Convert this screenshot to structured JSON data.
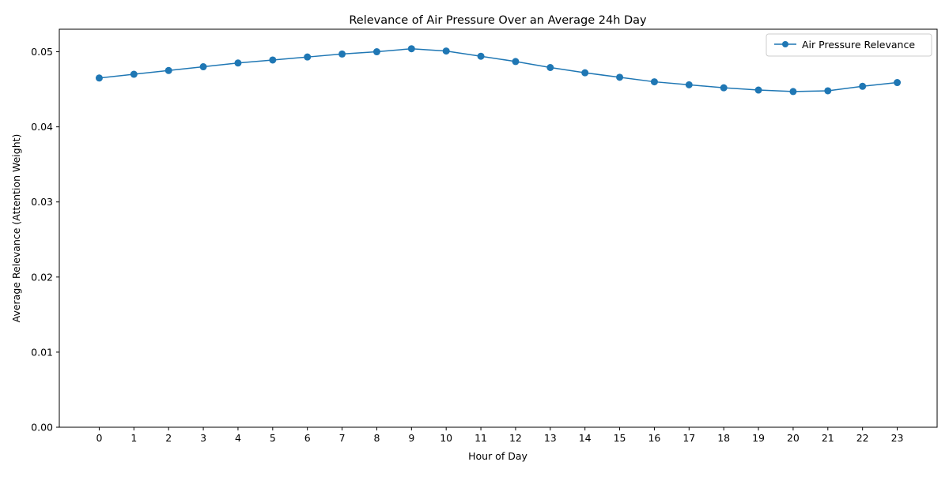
{
  "chart_data": {
    "type": "line",
    "title": "Relevance of Air Pressure Over an Average 24h Day",
    "xlabel": "Hour of Day",
    "ylabel": "Average Relevance (Attention Weight)",
    "x": [
      0,
      1,
      2,
      3,
      4,
      5,
      6,
      7,
      8,
      9,
      10,
      11,
      12,
      13,
      14,
      15,
      16,
      17,
      18,
      19,
      20,
      21,
      22,
      23
    ],
    "x_tick_labels": [
      "0",
      "1",
      "2",
      "3",
      "4",
      "5",
      "6",
      "7",
      "8",
      "9",
      "10",
      "11",
      "12",
      "13",
      "14",
      "15",
      "16",
      "17",
      "18",
      "19",
      "20",
      "21",
      "22",
      "23"
    ],
    "xlim": [
      -1.15,
      24.15
    ],
    "ylim": [
      0,
      0.053
    ],
    "y_ticks": [
      0,
      0.01,
      0.02,
      0.03,
      0.04,
      0.05
    ],
    "y_tick_labels": [
      "0.00",
      "0.01",
      "0.02",
      "0.03",
      "0.04",
      "0.05"
    ],
    "series": [
      {
        "name": "Air Pressure Relevance",
        "color": "#1f77b4",
        "marker": "circle",
        "values": [
          0.0465,
          0.047,
          0.0475,
          0.048,
          0.0485,
          0.0489,
          0.0493,
          0.0497,
          0.05,
          0.0504,
          0.0501,
          0.0494,
          0.0487,
          0.0479,
          0.0472,
          0.0466,
          0.046,
          0.0456,
          0.0452,
          0.0449,
          0.0447,
          0.0448,
          0.0454,
          0.0459
        ]
      }
    ],
    "grid": false,
    "legend_position": "top-right"
  }
}
